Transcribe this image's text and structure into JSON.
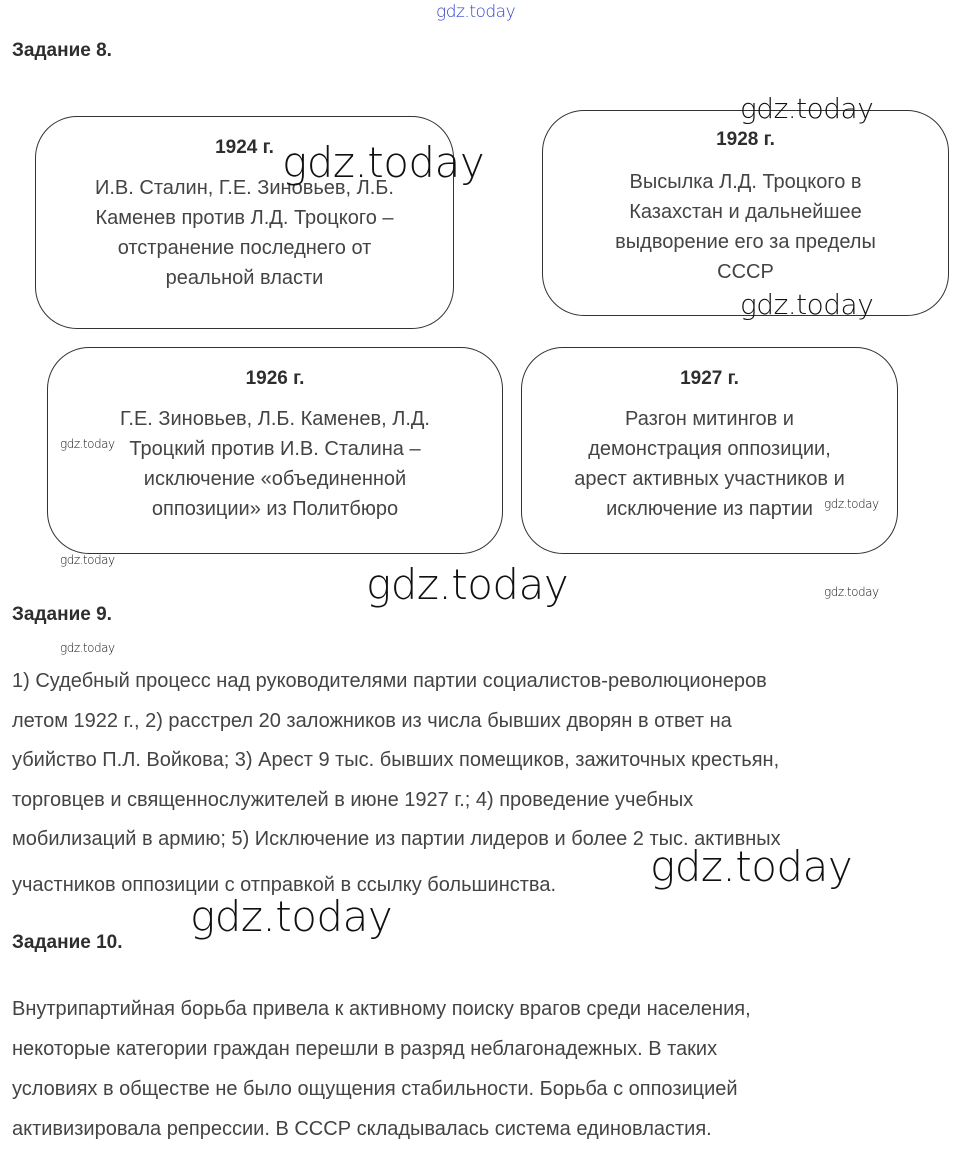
{
  "watermark": "gdz.today",
  "task8": {
    "heading": "Задание 8.",
    "boxes": [
      {
        "year": "1924 г.",
        "lines": [
          "И.В. Сталин, Г.Е. Зиновьев, Л.Б.",
          "Каменев против Л.Д. Троцкого –",
          "отстранение последнего от",
          "реальной власти"
        ]
      },
      {
        "year": "1928 г.",
        "lines": [
          "Высылка Л.Д. Троцкого в",
          "Казахстан и дальнейшее",
          "выдворение его за пределы",
          "СССР"
        ]
      },
      {
        "year": "1926 г.",
        "lines": [
          "Г.Е. Зиновьев, Л.Б. Каменев, Л.Д.",
          "Троцкий против И.В. Сталина –",
          "исключение «объединенной",
          "оппозиции» из Политбюро"
        ]
      },
      {
        "year": "1927 г.",
        "lines": [
          "Разгон митингов и",
          "демонстрация оппозиции,",
          "арест активных участников и",
          "исключение из партии"
        ]
      }
    ]
  },
  "task9": {
    "heading": "Задание 9.",
    "lines": [
      "1) Судебный процесс над руководителями партии социалистов-революционеров",
      "летом 1922 г., 2) расстрел 20 заложников из числа бывших дворян в ответ на",
      "убийство П.Л. Войкова; 3) Арест 9 тыс. бывших помещиков, зажиточных крестьян,",
      "торговцев и священнослужителей в июне 1927 г.; 4) проведение учебных",
      "мобилизаций в армию; 5) Исключение из партии лидеров и более 2 тыс. активных",
      "участников оппозиции с отправкой в ссылку большинства."
    ]
  },
  "task10": {
    "heading": "Задание 10.",
    "lines": [
      "Внутрипартийная борьба привела к активному поиску врагов среди населения,",
      "некоторые категории граждан перешли в разряд неблагонадежных. В таких",
      "условиях в обществе не было ощущения стабильности. Борьба с оппозицией",
      "активизировала репрессии. В СССР складывалась система единовластия."
    ]
  }
}
